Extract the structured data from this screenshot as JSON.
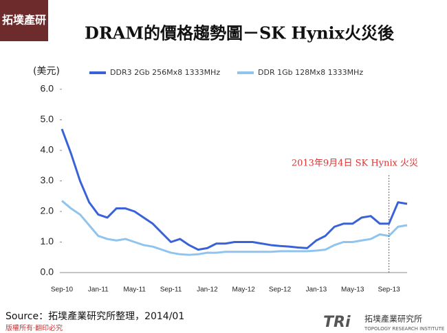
{
  "page": {
    "logo": "拓墣產研",
    "source": "Source：拓墣產業研究所整理，2014/01",
    "copyright": "版權所有‧翻印必究",
    "brand_mark": "TRi",
    "brand_name": "拓墣產業研究所",
    "brand_sub": "TOPOLOGY RESEARCH INSTITUTE"
  },
  "chart_data": {
    "type": "line",
    "title": "DRAM的價格趨勢圖－SK Hynix火災後",
    "y_label": "(美元)",
    "annotation": "2013年9月4日 SK Hynix 火災",
    "categories": [
      "Sep-10",
      null,
      null,
      null,
      "Jan-11",
      null,
      null,
      null,
      "May-11",
      null,
      null,
      null,
      "Sep-11",
      null,
      null,
      null,
      "Jan-12",
      null,
      null,
      null,
      "May-12",
      null,
      null,
      null,
      "Sep-12",
      null,
      null,
      null,
      "Jan-13",
      null,
      null,
      null,
      "May-13",
      null,
      null,
      null,
      "Sep-13",
      null,
      null
    ],
    "series": [
      {
        "name": "DDR3 2Gb 256Mx8 1333MHz",
        "color": "#3a62d8",
        "values": [
          4.7,
          3.9,
          3.0,
          2.3,
          1.9,
          1.8,
          2.1,
          2.1,
          2.0,
          1.8,
          1.6,
          1.3,
          1.0,
          1.1,
          0.9,
          0.75,
          0.8,
          0.95,
          0.95,
          1.0,
          1.0,
          1.0,
          0.95,
          0.9,
          0.87,
          0.85,
          0.82,
          0.8,
          1.05,
          1.2,
          1.5,
          1.6,
          1.6,
          1.8,
          1.85,
          1.6,
          1.6,
          2.3,
          2.25
        ]
      },
      {
        "name": "DDR 1Gb 128Mx8 1333MHz",
        "color": "#8ec4ee",
        "values": [
          2.35,
          2.1,
          1.9,
          1.55,
          1.2,
          1.1,
          1.05,
          1.1,
          1.0,
          0.9,
          0.85,
          0.75,
          0.65,
          0.6,
          0.58,
          0.6,
          0.65,
          0.65,
          0.68,
          0.68,
          0.68,
          0.68,
          0.68,
          0.68,
          0.7,
          0.7,
          0.7,
          0.7,
          0.72,
          0.75,
          0.9,
          1.0,
          1.0,
          1.05,
          1.1,
          1.25,
          1.2,
          1.5,
          1.55
        ]
      }
    ],
    "annotation_index": 36,
    "ylim": [
      0,
      6
    ],
    "yticks": [
      {
        "value": 0,
        "label": "0.0"
      },
      {
        "value": 1,
        "label": "1.0"
      },
      {
        "value": 2,
        "label": "2.0"
      },
      {
        "value": 3,
        "label": "3.0"
      },
      {
        "value": 4,
        "label": "4.0"
      },
      {
        "value": 5,
        "label": "5.0"
      },
      {
        "value": 6,
        "label": "6.0"
      }
    ]
  }
}
